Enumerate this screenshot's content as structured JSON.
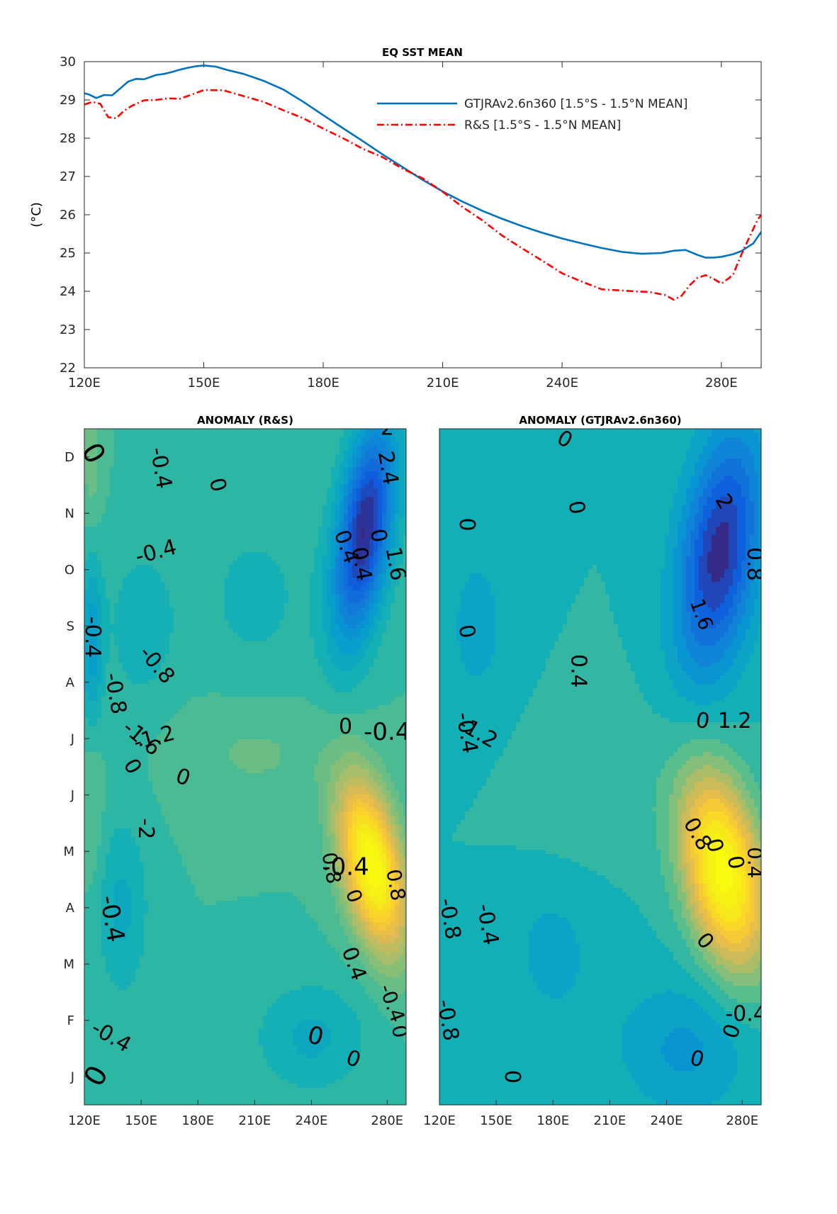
{
  "chart_data": [
    {
      "type": "line",
      "title": "EQ SST MEAN",
      "xlabel": "",
      "ylabel": "(°C)",
      "xlim": [
        120,
        290
      ],
      "ylim": [
        22,
        30
      ],
      "xticks": [
        120,
        150,
        180,
        210,
        240,
        280
      ],
      "xtick_labels": [
        "120E",
        "150E",
        "180E",
        "210E",
        "240E",
        "280E"
      ],
      "yticks": [
        22,
        23,
        24,
        25,
        26,
        27,
        28,
        29,
        30
      ],
      "ytick_labels": [
        "22",
        "23",
        "24",
        "25",
        "26",
        "27",
        "28",
        "29",
        "30"
      ],
      "legend_position": "top-right",
      "series": [
        {
          "name": "GTJRAv2.6n360 [1.5°S - 1.5°N MEAN]",
          "color": "#0072bd",
          "style": "solid",
          "x": [
            120,
            121,
            123,
            125,
            127,
            129,
            131,
            133,
            135,
            138,
            140,
            142,
            144,
            146,
            148,
            150,
            153,
            156,
            160,
            165,
            170,
            175,
            180,
            185,
            190,
            195,
            200,
            205,
            210,
            215,
            220,
            225,
            230,
            235,
            240,
            245,
            250,
            255,
            260,
            265,
            268,
            271,
            274,
            276,
            278,
            280,
            283,
            285,
            288,
            290
          ],
          "y": [
            29.17,
            29.15,
            29.05,
            29.13,
            29.12,
            29.3,
            29.48,
            29.55,
            29.54,
            29.65,
            29.68,
            29.73,
            29.79,
            29.84,
            29.88,
            29.9,
            29.87,
            29.78,
            29.68,
            29.5,
            29.27,
            28.95,
            28.6,
            28.26,
            27.92,
            27.57,
            27.24,
            26.91,
            26.61,
            26.34,
            26.1,
            25.89,
            25.7,
            25.53,
            25.38,
            25.25,
            25.13,
            25.03,
            24.98,
            25.0,
            25.06,
            25.08,
            24.95,
            24.88,
            24.88,
            24.9,
            24.97,
            25.05,
            25.25,
            25.55
          ]
        },
        {
          "name": "R&S [1.5°S - 1.5°N MEAN]",
          "color": "#ff0000",
          "style": "dash-dot",
          "x": [
            120,
            122,
            124,
            126,
            128,
            130,
            132,
            135,
            138,
            141,
            144,
            147,
            150,
            155,
            160,
            165,
            170,
            175,
            180,
            185,
            190,
            195,
            200,
            205,
            210,
            215,
            220,
            225,
            230,
            235,
            240,
            245,
            250,
            255,
            258,
            262,
            266,
            268,
            270,
            272,
            274,
            276,
            278,
            280,
            282,
            283,
            285,
            287,
            289,
            290
          ],
          "y": [
            28.88,
            28.95,
            28.9,
            28.55,
            28.52,
            28.72,
            28.85,
            28.99,
            29.0,
            29.04,
            29.03,
            29.14,
            29.26,
            29.25,
            29.1,
            28.95,
            28.73,
            28.52,
            28.25,
            28.0,
            27.72,
            27.5,
            27.2,
            26.95,
            26.6,
            26.2,
            25.85,
            25.45,
            25.12,
            24.8,
            24.47,
            24.25,
            24.05,
            24.02,
            24.0,
            23.98,
            23.9,
            23.78,
            23.88,
            24.15,
            24.35,
            24.42,
            24.33,
            24.2,
            24.35,
            24.45,
            24.95,
            25.4,
            25.85,
            26.0
          ]
        }
      ]
    },
    {
      "type": "heatmap",
      "title": "ANOMALY (R&S)",
      "xlabel": "",
      "ylabel": "",
      "xlim": [
        120,
        290
      ],
      "xticks": [
        120,
        150,
        180,
        210,
        240,
        280
      ],
      "xtick_labels": [
        "120E",
        "150E",
        "180E",
        "210E",
        "240E",
        "280E"
      ],
      "y_categories": [
        "J",
        "F",
        "M",
        "A",
        "M",
        "J",
        "J",
        "A",
        "S",
        "O",
        "N",
        "D"
      ],
      "colormap": "parula",
      "contour_interval": 0.4,
      "contour_labels": [
        "0",
        "-0.4",
        "0",
        "-0.4",
        "-0.4",
        "0",
        "-0.8",
        "-1.6",
        "-2",
        "-1.2",
        "-0.8",
        "-0.4",
        "-0.4",
        "0",
        "0",
        "0",
        "0",
        "0.4",
        "0",
        "-0.4",
        "0.4",
        "0.4",
        "0",
        "1.6",
        "2.4",
        "2",
        "0.8",
        "-0.4",
        "0",
        "0.8",
        "-0.4",
        "0",
        "1.2",
        "0",
        "-0.4",
        "0",
        "0",
        "0"
      ],
      "anomaly_field": {
        "range": [
          -2.2,
          2.6
        ],
        "centers": [
          {
            "lon": 268,
            "month": 10.2,
            "value": -2.2,
            "shape": "elongated"
          },
          {
            "lon": 272,
            "month": 4.4,
            "value": 2.6,
            "shape": "elongated"
          },
          {
            "lon": 124,
            "month": 8.2,
            "value": -0.7
          },
          {
            "lon": 150,
            "month": 8.5,
            "value": -0.4
          },
          {
            "lon": 140,
            "month": 3.5,
            "value": -0.5
          },
          {
            "lon": 240,
            "month": 1.2,
            "value": -0.5
          },
          {
            "lon": 124,
            "month": 11.5,
            "value": 0.3
          }
        ]
      }
    },
    {
      "type": "heatmap",
      "title": "ANOMALY (GTJRAv2.6n360)",
      "xlabel": "",
      "ylabel": "",
      "xlim": [
        120,
        290
      ],
      "xticks": [
        120,
        150,
        180,
        210,
        240,
        280
      ],
      "xtick_labels": [
        "120E",
        "150E",
        "180E",
        "210E",
        "240E",
        "280E"
      ],
      "y_categories": [
        "J",
        "F",
        "M",
        "A",
        "M",
        "J",
        "J",
        "A",
        "S",
        "O",
        "N",
        "D"
      ],
      "colormap": "parula",
      "contour_interval": 0.4,
      "contour_labels": [
        "0",
        "0",
        "-0.4",
        "-1.2",
        "-0.8",
        "-0.8",
        "-0.4",
        "0",
        "0",
        "0",
        "0.4",
        "0",
        "1.2",
        "1.6",
        "2",
        "0.8",
        "0.8",
        "0",
        "0",
        "0.4",
        "0",
        "0",
        "-0.4",
        "0"
      ],
      "anomaly_field": {
        "range": [
          -1.5,
          2.1
        ],
        "centers": [
          {
            "lon": 268,
            "month": 9.8,
            "value": -1.5
          },
          {
            "lon": 270,
            "month": 4.2,
            "value": 2.1
          },
          {
            "lon": 190,
            "month": 5.5,
            "value": 0.15
          },
          {
            "lon": 250,
            "month": 1.0,
            "value": -0.45
          }
        ]
      }
    }
  ]
}
